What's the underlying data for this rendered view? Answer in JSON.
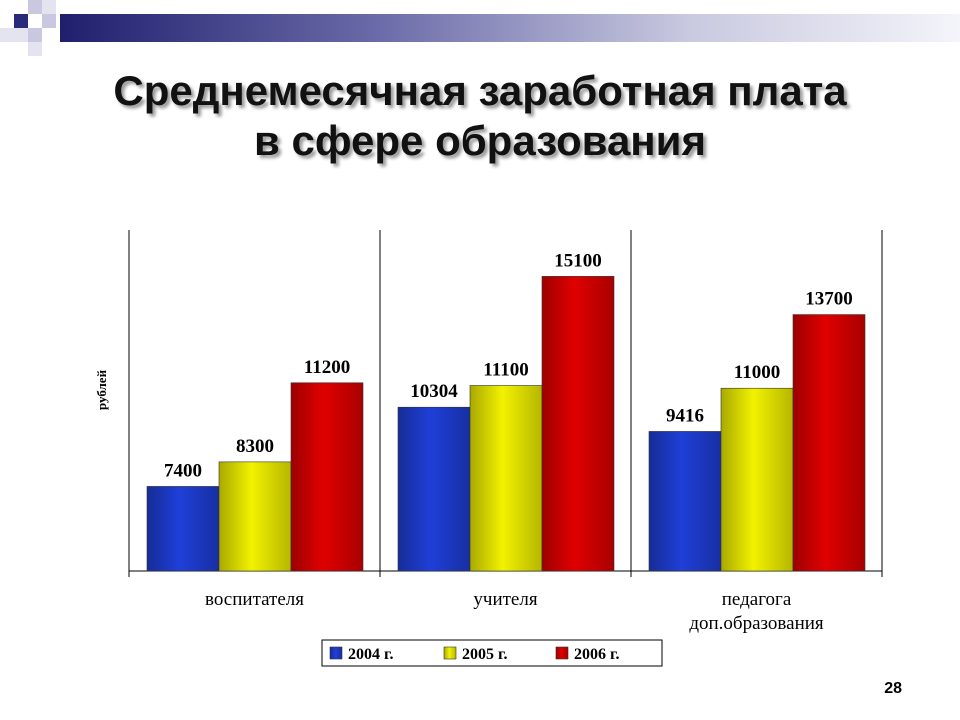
{
  "slide": {
    "title_line1": "Среднемесячная заработная плата",
    "title_line2": "в сфере образования",
    "page_number": "28",
    "accent_color": "#1f1f6e"
  },
  "chart_data": {
    "type": "bar",
    "categories": [
      "воспитателя",
      "учителя",
      "педагога доп.образования"
    ],
    "category_lines": [
      [
        "воспитателя"
      ],
      [
        "учителя"
      ],
      [
        "педагога",
        "доп.образования"
      ]
    ],
    "series": [
      {
        "name": "2004 г.",
        "values": [
          7400,
          10304,
          9416
        ],
        "color": "#1f3fd8"
      },
      {
        "name": "2005 г.",
        "values": [
          8300,
          11100,
          11000
        ],
        "color": "#f2f200"
      },
      {
        "name": "2006 г.",
        "values": [
          11200,
          15100,
          13700
        ],
        "color": "#e00000"
      }
    ],
    "ylabel": "рублей",
    "ylim": [
      4300,
      16800
    ],
    "grid": false,
    "legend_position": "bottom"
  }
}
